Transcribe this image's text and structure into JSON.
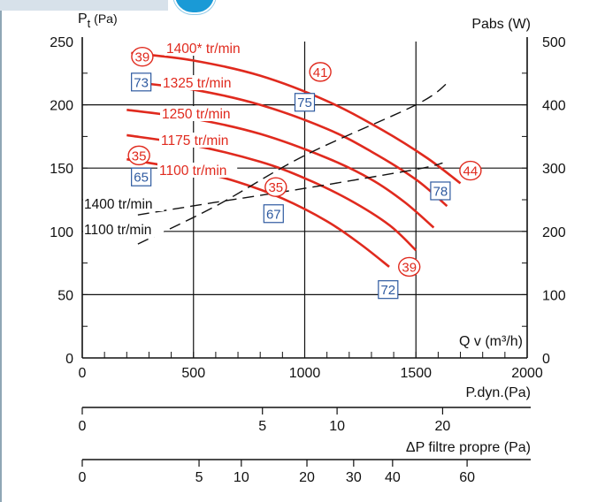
{
  "chart_data": {
    "type": "line",
    "x_label": "Q v (m³/h)",
    "y_left_label": "Pt (Pa)",
    "y_right_label": "Pabs (W)",
    "x_range": [
      0,
      2000
    ],
    "y_left_range": [
      0,
      250
    ],
    "y_right_range": [
      0,
      500
    ],
    "x_ticks": [
      "0",
      "500",
      "1000",
      "1500",
      "2000"
    ],
    "y_left_ticks": [
      "0",
      "50",
      "100",
      "150",
      "200",
      "250"
    ],
    "y_right_ticks": [
      "0",
      "100",
      "200",
      "300",
      "400",
      "500"
    ],
    "grid": true,
    "pressure_series": [
      {
        "name": "1400* tr/min",
        "points": [
          [
            220,
            241
          ],
          [
            500,
            235
          ],
          [
            800,
            223
          ],
          [
            1100,
            203
          ],
          [
            1350,
            180
          ],
          [
            1550,
            158
          ],
          [
            1700,
            138
          ]
        ]
      },
      {
        "name": "1325 tr/min",
        "points": [
          [
            220,
            218
          ],
          [
            500,
            212
          ],
          [
            800,
            200
          ],
          [
            1100,
            181
          ],
          [
            1300,
            163
          ],
          [
            1500,
            141
          ],
          [
            1640,
            120
          ]
        ]
      },
      {
        "name": "1250 tr/min",
        "points": [
          [
            200,
            196
          ],
          [
            500,
            189
          ],
          [
            800,
            177
          ],
          [
            1100,
            158
          ],
          [
            1300,
            141
          ],
          [
            1450,
            123
          ],
          [
            1580,
            103
          ]
        ]
      },
      {
        "name": "1175 tr/min",
        "points": [
          [
            200,
            176
          ],
          [
            500,
            168
          ],
          [
            800,
            155
          ],
          [
            1000,
            142
          ],
          [
            1200,
            125
          ],
          [
            1380,
            105
          ],
          [
            1500,
            85
          ]
        ]
      },
      {
        "name": "1100 tr/min",
        "points": [
          [
            200,
            157
          ],
          [
            500,
            148
          ],
          [
            700,
            139
          ],
          [
            900,
            126
          ],
          [
            1100,
            108
          ],
          [
            1250,
            90
          ],
          [
            1380,
            72
          ]
        ]
      }
    ],
    "power_series": [
      {
        "name": "1400 tr/min",
        "points": [
          [
            250,
            180
          ],
          [
            600,
            240
          ],
          [
            1000,
            320
          ],
          [
            1500,
            400
          ],
          [
            1640,
            434
          ]
        ]
      },
      {
        "name": "1100 tr/min",
        "points": [
          [
            250,
            226
          ],
          [
            600,
            246
          ],
          [
            1000,
            268
          ],
          [
            1500,
            298
          ],
          [
            1620,
            308
          ]
        ]
      }
    ],
    "speed_labels": [
      "1400* tr/min",
      "1325 tr/min",
      "1250 tr/min",
      "1175 tr/min",
      "1100 tr/min"
    ],
    "power_labels": [
      "1400 tr/min",
      "1100 tr/min"
    ],
    "noise_labels_red": [
      {
        "text": "39",
        "x": 270,
        "y": 238
      },
      {
        "text": "41",
        "x": 1070,
        "y": 226
      },
      {
        "text": "44",
        "x": 1745,
        "y": 148
      },
      {
        "text": "35",
        "x": 255,
        "y": 160
      },
      {
        "text": "35",
        "x": 870,
        "y": 135
      },
      {
        "text": "39",
        "x": 1470,
        "y": 72
      }
    ],
    "noise_labels_blue": [
      {
        "text": "73",
        "x": 265,
        "y": 218
      },
      {
        "text": "75",
        "x": 1000,
        "y": 202
      },
      {
        "text": "65",
        "x": 265,
        "y": 143
      },
      {
        "text": "67",
        "x": 860,
        "y": 114
      },
      {
        "text": "78",
        "x": 1610,
        "y": 132
      },
      {
        "text": "72",
        "x": 1375,
        "y": 54
      }
    ],
    "pdyn_scale": {
      "label": "P.dyn.(Pa)",
      "ticks": [
        {
          "label": "0",
          "value": 0
        },
        {
          "label": "5",
          "value": 5
        },
        {
          "label": "10",
          "value": 10
        },
        {
          "label": "20",
          "value": 20
        }
      ]
    },
    "filter_scale": {
      "label": "ΔP filtre propre (Pa)",
      "ticks": [
        {
          "label": "0",
          "value": 0
        },
        {
          "label": "5",
          "value": 5
        },
        {
          "label": "10",
          "value": 10
        },
        {
          "label": "20",
          "value": 20
        },
        {
          "label": "30",
          "value": 30
        },
        {
          "label": "40",
          "value": 40
        },
        {
          "label": "60",
          "value": 60
        }
      ]
    },
    "colors": {
      "pressure": "#e02a1e",
      "power": "#111111",
      "noise_red": "#e02a1e",
      "noise_blue": "#2e5aa0"
    }
  }
}
